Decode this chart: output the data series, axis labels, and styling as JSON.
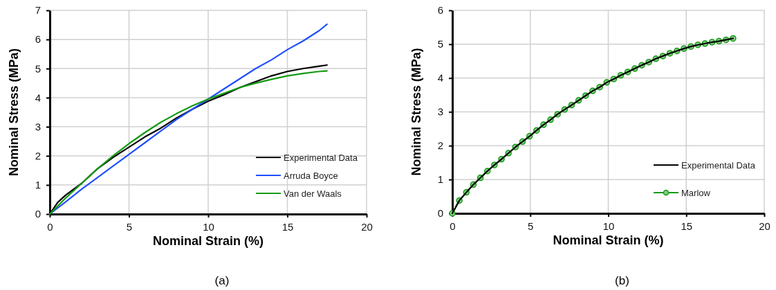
{
  "chart_data": [
    {
      "type": "line",
      "xlabel": "Nominal Strain (%)",
      "ylabel": "Nominal Stress (MPa)",
      "annotations": [
        "(a)"
      ],
      "xlim": [
        0,
        20
      ],
      "ylim": [
        0,
        7
      ],
      "xticks": [
        0,
        5,
        10,
        15,
        20
      ],
      "yticks": [
        0,
        1,
        2,
        3,
        4,
        5,
        6,
        7
      ],
      "grid": true,
      "legend": "bottom right",
      "line_style": "solid",
      "series": [
        {
          "name": "Experimental Data",
          "color": "#000000",
          "x": [
            0,
            0.5,
            1,
            2,
            3,
            4,
            5,
            6,
            7,
            8,
            9,
            10,
            11,
            12,
            13,
            14,
            15,
            16,
            17,
            17.5
          ],
          "values": [
            0,
            0.4,
            0.65,
            1.05,
            1.55,
            1.95,
            2.3,
            2.65,
            2.95,
            3.3,
            3.6,
            3.88,
            4.1,
            4.35,
            4.55,
            4.75,
            4.9,
            5.0,
            5.08,
            5.12
          ]
        },
        {
          "name": "Arruda Boyce",
          "color": "#1f4fff",
          "x": [
            0,
            1,
            2,
            3,
            4,
            5,
            6,
            7,
            8,
            9,
            10,
            11,
            12,
            13,
            14,
            15,
            16,
            17,
            17.5
          ],
          "values": [
            0,
            0.42,
            0.85,
            1.25,
            1.65,
            2.05,
            2.45,
            2.85,
            3.25,
            3.6,
            3.95,
            4.3,
            4.65,
            5.0,
            5.3,
            5.65,
            5.95,
            6.3,
            6.52
          ]
        },
        {
          "name": "Van der Waals",
          "color": "#139a13",
          "x": [
            0,
            1,
            2,
            3,
            4,
            5,
            6,
            7,
            8,
            9,
            10,
            11,
            12,
            13,
            14,
            15,
            16,
            17,
            17.5
          ],
          "values": [
            0,
            0.55,
            1.05,
            1.55,
            2.0,
            2.42,
            2.8,
            3.15,
            3.45,
            3.72,
            3.95,
            4.15,
            4.35,
            4.5,
            4.63,
            4.75,
            4.83,
            4.9,
            4.92
          ]
        }
      ]
    },
    {
      "type": "line",
      "xlabel": "Nominal Strain (%)",
      "ylabel": "Nominal Stress (MPa)",
      "annotations": [
        "(b)"
      ],
      "xlim": [
        0,
        20
      ],
      "ylim": [
        0,
        6
      ],
      "xticks": [
        0,
        5,
        10,
        15,
        20
      ],
      "yticks": [
        0,
        1,
        2,
        3,
        4,
        5,
        6
      ],
      "grid": true,
      "legend": "bottom right",
      "line_style": "solid",
      "series": [
        {
          "name": "Experimental Data",
          "color": "#000000",
          "marker": "none",
          "x": [
            0,
            0.45,
            0.9,
            1.35,
            1.8,
            2.25,
            2.7,
            3.15,
            3.6,
            4.05,
            4.5,
            4.95,
            5.4,
            5.85,
            6.3,
            6.75,
            7.2,
            7.65,
            8.1,
            8.55,
            9.0,
            9.45,
            9.9,
            10.35,
            10.8,
            11.25,
            11.7,
            12.15,
            12.6,
            13.05,
            13.5,
            13.95,
            14.4,
            14.85,
            15.3,
            15.75,
            16.2,
            16.65,
            17.1,
            17.55,
            18.0
          ],
          "values": [
            0,
            0.38,
            0.62,
            0.85,
            1.05,
            1.25,
            1.43,
            1.6,
            1.78,
            1.96,
            2.12,
            2.28,
            2.45,
            2.62,
            2.77,
            2.93,
            3.07,
            3.2,
            3.34,
            3.48,
            3.62,
            3.73,
            3.87,
            3.97,
            4.08,
            4.18,
            4.28,
            4.38,
            4.47,
            4.57,
            4.65,
            4.73,
            4.8,
            4.87,
            4.93,
            4.98,
            5.02,
            5.06,
            5.09,
            5.13,
            5.17
          ]
        },
        {
          "name": "Marlow",
          "color": "#139a13",
          "marker": "circle",
          "x": [
            0,
            0.45,
            0.9,
            1.35,
            1.8,
            2.25,
            2.7,
            3.15,
            3.6,
            4.05,
            4.5,
            4.95,
            5.4,
            5.85,
            6.3,
            6.75,
            7.2,
            7.65,
            8.1,
            8.55,
            9.0,
            9.45,
            9.9,
            10.35,
            10.8,
            11.25,
            11.7,
            12.15,
            12.6,
            13.05,
            13.5,
            13.95,
            14.4,
            14.85,
            15.3,
            15.75,
            16.2,
            16.65,
            17.1,
            17.55,
            18.0
          ],
          "values": [
            0,
            0.38,
            0.62,
            0.85,
            1.05,
            1.25,
            1.43,
            1.6,
            1.78,
            1.96,
            2.12,
            2.28,
            2.45,
            2.62,
            2.77,
            2.93,
            3.07,
            3.2,
            3.34,
            3.48,
            3.62,
            3.73,
            3.87,
            3.97,
            4.08,
            4.18,
            4.28,
            4.38,
            4.47,
            4.57,
            4.65,
            4.73,
            4.8,
            4.87,
            4.93,
            4.98,
            5.02,
            5.06,
            5.09,
            5.13,
            5.17
          ]
        }
      ]
    }
  ]
}
